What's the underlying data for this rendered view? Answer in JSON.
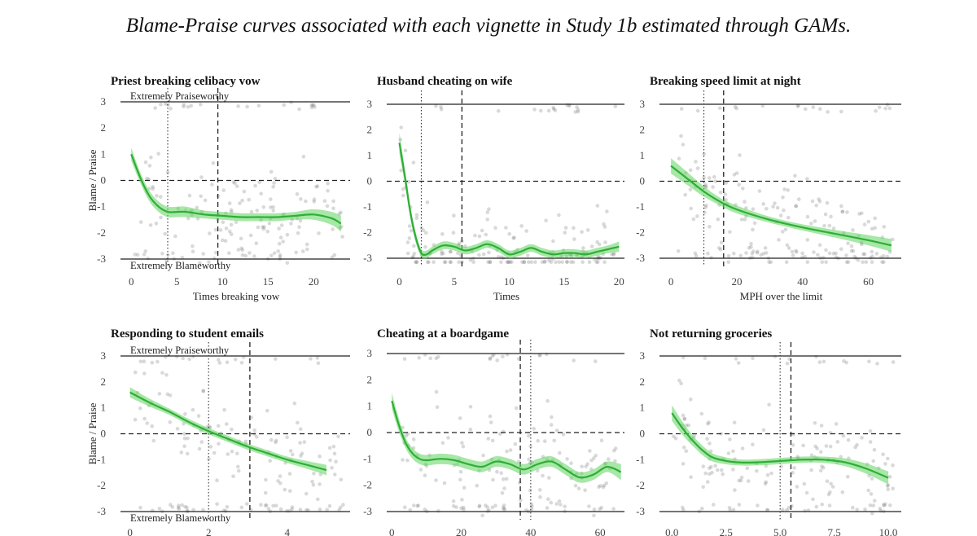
{
  "title": "Blame-Praise curves associated with each vignette in Study 1b estimated through GAMs.",
  "chart_data": [
    {
      "type": "line",
      "title": "Priest breaking celibacy vow",
      "xlabel": "Times breaking vow",
      "ylabel": "Blame / Praise",
      "xlim": [
        -1,
        24
      ],
      "ylim": [
        -3.2,
        3.3
      ],
      "xticks": [
        0,
        5,
        10,
        15,
        20
      ],
      "xtick_labels": [
        "0",
        "5",
        "10",
        "15",
        "20"
      ],
      "yticks": [
        3,
        2,
        1,
        0,
        -1,
        -2,
        -3
      ],
      "ytick_labels": [
        "3",
        "2",
        "1",
        "0",
        "-1",
        "-2",
        "-3"
      ],
      "annotations": {
        "top": "Extremely Praiseworthy",
        "bottom": "Extremely Blameworthy"
      },
      "vlines": {
        "dotted": 4,
        "dashed": 9.5
      },
      "hlines": {
        "solid": [
          3,
          -3
        ],
        "dashed": [
          0
        ]
      },
      "series": [
        {
          "name": "GAM fit",
          "x": [
            0,
            1,
            2,
            3,
            4,
            5,
            6,
            8,
            10,
            12,
            14,
            16,
            18,
            20,
            22,
            23
          ],
          "y": [
            1.0,
            0.1,
            -0.6,
            -1.0,
            -1.2,
            -1.2,
            -1.2,
            -1.3,
            -1.35,
            -1.4,
            -1.4,
            -1.4,
            -1.35,
            -1.3,
            -1.45,
            -1.65
          ],
          "se": [
            0.25,
            0.2,
            0.2,
            0.2,
            0.2,
            0.2,
            0.2,
            0.15,
            0.15,
            0.15,
            0.15,
            0.15,
            0.15,
            0.2,
            0.25,
            0.3
          ]
        }
      ],
      "points_seed": 11,
      "points_count": 180
    },
    {
      "type": "line",
      "title": "Husband cheating on wife",
      "xlabel": "Times",
      "ylabel": "",
      "xlim": [
        -1,
        20.5
      ],
      "ylim": [
        -3.2,
        3.3
      ],
      "xticks": [
        0,
        5,
        10,
        15,
        20
      ],
      "xtick_labels": [
        "0",
        "5",
        "10",
        "15",
        "20"
      ],
      "yticks": [
        3,
        2,
        1,
        0,
        -1,
        -2,
        -3
      ],
      "ytick_labels": [
        "3",
        "2",
        "1",
        "0",
        "-1",
        "-2",
        "-3"
      ],
      "annotations": {
        "top": "",
        "bottom": ""
      },
      "vlines": {
        "dotted": 2,
        "dashed": 5.7
      },
      "hlines": {
        "solid": [
          3,
          -3
        ],
        "dashed": [
          0
        ]
      },
      "series": [
        {
          "name": "GAM fit",
          "x": [
            0,
            0.5,
            1,
            1.5,
            2,
            2.5,
            3,
            4,
            5,
            6,
            7,
            8,
            9,
            10,
            11,
            12,
            13,
            14,
            15,
            16,
            17,
            18,
            19,
            20
          ],
          "y": [
            1.5,
            0.2,
            -1.2,
            -2.2,
            -2.8,
            -2.85,
            -2.7,
            -2.5,
            -2.55,
            -2.7,
            -2.6,
            -2.45,
            -2.6,
            -2.85,
            -2.75,
            -2.6,
            -2.75,
            -2.85,
            -2.8,
            -2.8,
            -2.85,
            -2.75,
            -2.65,
            -2.55
          ],
          "se": [
            0.4,
            0.3,
            0.25,
            0.2,
            0.15,
            0.15,
            0.15,
            0.15,
            0.15,
            0.15,
            0.15,
            0.15,
            0.15,
            0.15,
            0.15,
            0.15,
            0.15,
            0.15,
            0.15,
            0.15,
            0.15,
            0.15,
            0.15,
            0.2
          ]
        }
      ],
      "points_seed": 23,
      "points_count": 180
    },
    {
      "type": "line",
      "title": "Breaking speed limit at night",
      "xlabel": "MPH over the limit",
      "ylabel": "",
      "xlim": [
        -3,
        70
      ],
      "ylim": [
        -3.2,
        3.3
      ],
      "xticks": [
        0,
        20,
        40,
        60
      ],
      "xtick_labels": [
        "0",
        "20",
        "40",
        "60"
      ],
      "yticks": [
        3,
        2,
        1,
        0,
        -1,
        -2,
        -3
      ],
      "ytick_labels": [
        "3",
        "2",
        "1",
        "0",
        "-1",
        "-2",
        "-3"
      ],
      "annotations": {
        "top": "",
        "bottom": ""
      },
      "vlines": {
        "dotted": 10,
        "dashed": 16
      },
      "hlines": {
        "solid": [
          3,
          -3
        ],
        "dashed": [
          0
        ]
      },
      "series": [
        {
          "name": "GAM fit",
          "x": [
            0,
            5,
            10,
            15,
            20,
            30,
            40,
            50,
            60,
            67
          ],
          "y": [
            0.6,
            0.1,
            -0.4,
            -0.8,
            -1.1,
            -1.5,
            -1.8,
            -2.05,
            -2.3,
            -2.5
          ],
          "se": [
            0.3,
            0.25,
            0.2,
            0.15,
            0.15,
            0.12,
            0.12,
            0.15,
            0.2,
            0.25
          ]
        }
      ],
      "points_seed": 37,
      "points_count": 200
    },
    {
      "type": "line",
      "title": "Responding to student emails",
      "xlabel": "",
      "ylabel": "Blame / Praise",
      "xlim": [
        -0.2,
        5.6
      ],
      "ylim": [
        -3.2,
        3.3
      ],
      "xticks": [
        0,
        2,
        4
      ],
      "xtick_labels": [
        "0",
        "2",
        "4"
      ],
      "yticks": [
        3,
        2,
        1,
        0,
        -1,
        -2,
        -3
      ],
      "ytick_labels": [
        "3",
        "2",
        "1",
        "0",
        "-1",
        "-2",
        "-3"
      ],
      "annotations": {
        "top": "Extremely Praiseworthy",
        "bottom": "Extremely Blameworthy"
      },
      "vlines": {
        "dotted": 2,
        "dashed": 3.05
      },
      "hlines": {
        "solid": [
          3,
          -3
        ],
        "dashed": [
          0
        ]
      },
      "series": [
        {
          "name": "GAM fit",
          "x": [
            0,
            0.5,
            1,
            1.5,
            2,
            2.5,
            3,
            3.5,
            4,
            4.5,
            5
          ],
          "y": [
            1.6,
            1.2,
            0.85,
            0.45,
            0.1,
            -0.2,
            -0.5,
            -0.75,
            -1.0,
            -1.2,
            -1.4
          ],
          "se": [
            0.2,
            0.15,
            0.12,
            0.12,
            0.12,
            0.12,
            0.12,
            0.12,
            0.12,
            0.15,
            0.2
          ]
        }
      ],
      "points_seed": 53,
      "points_count": 170
    },
    {
      "type": "line",
      "title": "Cheating at a boardgame",
      "xlabel": "",
      "ylabel": "",
      "xlim": [
        -1,
        67
      ],
      "ylim": [
        -3.2,
        3.3
      ],
      "xticks": [
        0,
        20,
        40,
        60
      ],
      "xtick_labels": [
        "0",
        "20",
        "40",
        "60"
      ],
      "yticks": [
        3,
        2,
        1,
        0,
        -1,
        -2,
        -3
      ],
      "ytick_labels": [
        "3",
        "2",
        "1",
        "0",
        "-1",
        "-2",
        "-3"
      ],
      "annotations": {
        "top": "",
        "bottom": ""
      },
      "vlines": {
        "dotted": 40,
        "dashed": 37
      },
      "hlines": {
        "solid": [
          3,
          -3
        ],
        "dashed": [
          0
        ]
      },
      "series": [
        {
          "name": "GAM fit",
          "x": [
            0,
            2,
            4,
            6,
            8,
            10,
            14,
            18,
            22,
            26,
            30,
            34,
            38,
            42,
            46,
            50,
            54,
            58,
            62,
            66
          ],
          "y": [
            1.2,
            0.3,
            -0.4,
            -0.8,
            -1.0,
            -1.05,
            -1.0,
            -1.05,
            -1.2,
            -1.3,
            -1.1,
            -1.2,
            -1.4,
            -1.2,
            -1.1,
            -1.4,
            -1.7,
            -1.6,
            -1.3,
            -1.5
          ],
          "se": [
            0.3,
            0.25,
            0.2,
            0.2,
            0.2,
            0.2,
            0.2,
            0.2,
            0.2,
            0.2,
            0.2,
            0.2,
            0.2,
            0.2,
            0.2,
            0.2,
            0.2,
            0.2,
            0.2,
            0.3
          ]
        }
      ],
      "points_seed": 71,
      "points_count": 180
    },
    {
      "type": "line",
      "title": "Not returning groceries",
      "xlabel": "",
      "ylabel": "",
      "xlim": [
        -0.5,
        10.6
      ],
      "ylim": [
        -3.2,
        3.3
      ],
      "xticks": [
        0,
        2.5,
        5,
        7.5,
        10
      ],
      "xtick_labels": [
        "0.0",
        "2.5",
        "5.0",
        "7.5",
        "10.0"
      ],
      "yticks": [
        3,
        2,
        1,
        0,
        -1,
        -2,
        -3
      ],
      "ytick_labels": [
        "3",
        "2",
        "1",
        "0",
        "-1",
        "-2",
        "-3"
      ],
      "annotations": {
        "top": "",
        "bottom": ""
      },
      "vlines": {
        "dotted": 5,
        "dashed": 5.5
      },
      "hlines": {
        "solid": [
          3,
          -3
        ],
        "dashed": [
          0
        ]
      },
      "series": [
        {
          "name": "GAM fit",
          "x": [
            0,
            0.5,
            1,
            1.5,
            2,
            3,
            4,
            5,
            6,
            7,
            8,
            9,
            10
          ],
          "y": [
            0.8,
            0.2,
            -0.3,
            -0.7,
            -0.95,
            -1.1,
            -1.1,
            -1.05,
            -1.0,
            -1.0,
            -1.1,
            -1.35,
            -1.7
          ],
          "se": [
            0.3,
            0.25,
            0.2,
            0.18,
            0.15,
            0.12,
            0.12,
            0.12,
            0.12,
            0.12,
            0.15,
            0.2,
            0.25
          ]
        }
      ],
      "points_seed": 97,
      "points_count": 180
    }
  ]
}
